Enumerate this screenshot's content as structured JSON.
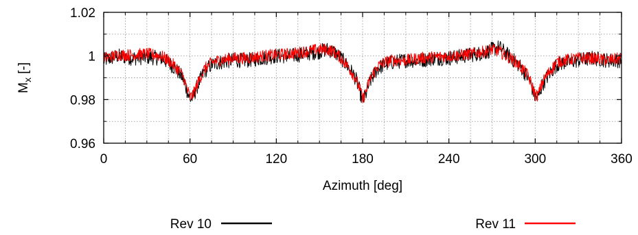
{
  "chart_data": {
    "type": "line",
    "title": "",
    "xlabel": "Azimuth [deg]",
    "ylabel": "M",
    "ylabel_subscript": "x",
    "ylabel_suffix": " [-]",
    "xlim": [
      0,
      360
    ],
    "ylim": [
      0.96,
      1.02
    ],
    "xticks": [
      0,
      60,
      120,
      180,
      240,
      300,
      360
    ],
    "xtick_labels": [
      "0",
      "60",
      "120",
      "180",
      "240",
      "300",
      "360"
    ],
    "yticks": [
      0.96,
      0.98,
      1.0,
      1.02
    ],
    "ytick_labels": [
      "0.96",
      "0.98",
      "1",
      "1.02"
    ],
    "grid": true,
    "legend_position": "bottom",
    "series": [
      {
        "name": "Rev 10",
        "color": "#000000",
        "noise_amplitude": 0.0035,
        "x": [
          0,
          10,
          20,
          30,
          40,
          45,
          50,
          55,
          58,
          60,
          62,
          65,
          70,
          75,
          80,
          90,
          100,
          110,
          120,
          130,
          140,
          150,
          155,
          160,
          165,
          170,
          175,
          178,
          180,
          182,
          185,
          190,
          195,
          200,
          210,
          220,
          230,
          240,
          250,
          260,
          265,
          270,
          275,
          280,
          285,
          290,
          295,
          298,
          300,
          302,
          305,
          310,
          315,
          320,
          330,
          340,
          350,
          360
        ],
        "y": [
          0.998,
          1.0,
          0.999,
          0.9995,
          0.999,
          0.997,
          0.994,
          0.99,
          0.984,
          0.98,
          0.981,
          0.986,
          0.993,
          0.996,
          0.997,
          0.998,
          0.998,
          0.999,
          1.0,
          1.0,
          1.001,
          1.002,
          1.003,
          1.002,
          0.999,
          0.995,
          0.99,
          0.984,
          0.979,
          0.982,
          0.988,
          0.994,
          0.996,
          0.997,
          0.998,
          0.998,
          0.999,
          0.999,
          1.0,
          1.001,
          1.0015,
          1.003,
          1.004,
          1.001,
          0.998,
          0.995,
          0.99,
          0.985,
          0.981,
          0.981,
          0.987,
          0.992,
          0.996,
          0.997,
          0.998,
          0.999,
          0.998,
          0.998
        ]
      },
      {
        "name": "Rev 11",
        "color": "#ff0000",
        "noise_amplitude": 0.0028,
        "x": [
          0,
          10,
          20,
          30,
          40,
          45,
          50,
          55,
          58,
          60,
          62,
          65,
          70,
          75,
          80,
          90,
          100,
          110,
          120,
          130,
          140,
          150,
          155,
          160,
          165,
          170,
          175,
          178,
          180,
          182,
          185,
          190,
          195,
          200,
          210,
          220,
          230,
          240,
          250,
          260,
          265,
          270,
          275,
          280,
          285,
          290,
          295,
          298,
          300,
          302,
          305,
          310,
          315,
          320,
          330,
          340,
          350,
          360
        ],
        "y": [
          0.999,
          1.0005,
          1.0005,
          1.001,
          1.0,
          0.998,
          0.995,
          0.991,
          0.985,
          0.981,
          0.982,
          0.987,
          0.994,
          0.997,
          0.998,
          0.999,
          0.999,
          1.0,
          1.0005,
          1.001,
          1.002,
          1.003,
          1.003,
          1.002,
          0.999,
          0.995,
          0.99,
          0.985,
          0.98,
          0.983,
          0.989,
          0.995,
          0.997,
          0.998,
          0.998,
          0.999,
          0.9995,
          1.0,
          1.0005,
          1.0015,
          1.002,
          1.003,
          1.002,
          1.0,
          0.998,
          0.995,
          0.991,
          0.986,
          0.982,
          0.982,
          0.988,
          0.993,
          0.997,
          0.998,
          0.999,
          0.999,
          0.998,
          0.999
        ]
      }
    ]
  }
}
